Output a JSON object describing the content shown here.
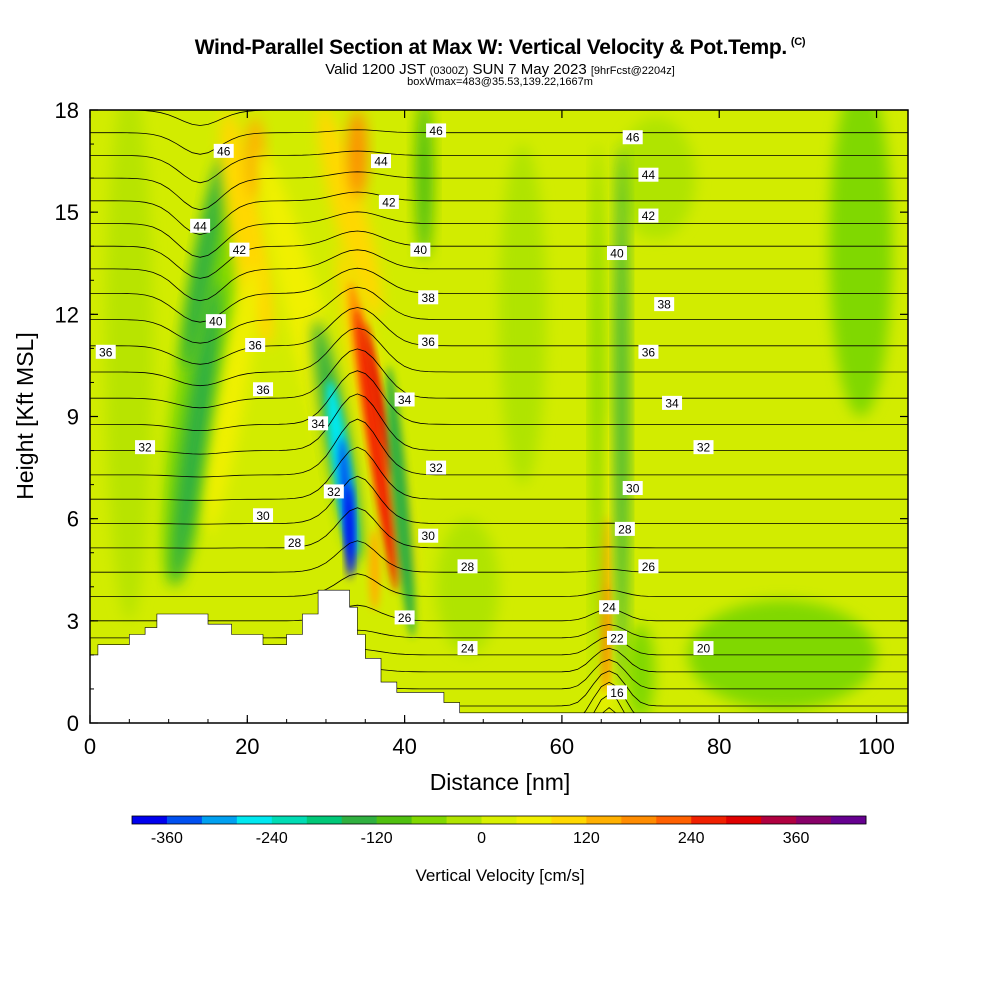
{
  "title": "Wind-Parallel Section at Max W: Vertical Velocity & Pot.Temp.",
  "title_mark": "(C)",
  "subtitle_main": "Valid 1200 JST",
  "subtitle_z": "(0300Z)",
  "subtitle_date": "SUN 7 May 2023",
  "subtitle_fcst": "[9hrFcst@2204z]",
  "subsubtitle": "boxWmax=483@35.53,139.22,1667m",
  "chart_data": {
    "type": "heatmap",
    "xlabel": "Distance [nm]",
    "ylabel": "Height [Kft MSL]",
    "xlim": [
      0,
      104
    ],
    "ylim": [
      0,
      18
    ],
    "x_ticks": [
      "0",
      "20",
      "40",
      "60",
      "80",
      "100"
    ],
    "y_ticks": [
      "0",
      "3",
      "6",
      "9",
      "12",
      "15",
      "18"
    ],
    "fill_variable": "Vertical Velocity [cm/s]",
    "colorbar": {
      "label": "Vertical Velocity [cm/s]",
      "tick_labels": [
        "-360",
        "-240",
        "-120",
        "0",
        "120",
        "240",
        "360"
      ],
      "colors": [
        "#0000ee",
        "#0050f0",
        "#00a0f0",
        "#00e8f0",
        "#00dcb4",
        "#00c878",
        "#30b040",
        "#50c010",
        "#80d800",
        "#b0e400",
        "#d8f000",
        "#f0f000",
        "#ffd800",
        "#ffb000",
        "#ff8c00",
        "#ff6000",
        "#f02000",
        "#e00000",
        "#b00040",
        "#880068",
        "#660090"
      ]
    },
    "features": [
      {
        "name": "strong updraft",
        "x": 37,
        "ymin": 2.5,
        "ymax": 13,
        "w_peak": 483
      },
      {
        "name": "strong downdraft",
        "x": 32.5,
        "ymin": 3.5,
        "ymax": 10,
        "w_peak": -360
      },
      {
        "name": "updraft",
        "x": 66,
        "ymin": 0.3,
        "ymax": 9,
        "w_peak": 180
      },
      {
        "name": "downdraft",
        "x": 14,
        "ymin": 4,
        "ymax": 16,
        "w_peak": -130
      },
      {
        "name": "updraft",
        "x": 20,
        "ymin": 9,
        "ymax": 18,
        "w_peak": 150
      }
    ],
    "theta_contours": {
      "unit": "K",
      "interval": 1,
      "labeled_values": [
        {
          "text": "46",
          "x": 17,
          "y": 16.8
        },
        {
          "text": "46",
          "x": 44,
          "y": 17.4
        },
        {
          "text": "46",
          "x": 69,
          "y": 17.2
        },
        {
          "text": "44",
          "x": 14,
          "y": 14.6
        },
        {
          "text": "44",
          "x": 37,
          "y": 16.5
        },
        {
          "text": "44",
          "x": 71,
          "y": 16.1
        },
        {
          "text": "42",
          "x": 19,
          "y": 13.9
        },
        {
          "text": "42",
          "x": 38,
          "y": 15.3
        },
        {
          "text": "42",
          "x": 71,
          "y": 14.9
        },
        {
          "text": "40",
          "x": 16,
          "y": 11.8
        },
        {
          "text": "40",
          "x": 42,
          "y": 13.9
        },
        {
          "text": "40",
          "x": 67,
          "y": 13.8
        },
        {
          "text": "38",
          "x": 43,
          "y": 12.5
        },
        {
          "text": "38",
          "x": 73,
          "y": 12.3
        },
        {
          "text": "36",
          "x": 2,
          "y": 10.9
        },
        {
          "text": "36",
          "x": 21,
          "y": 11.1
        },
        {
          "text": "36",
          "x": 22,
          "y": 9.8
        },
        {
          "text": "36",
          "x": 43,
          "y": 11.2
        },
        {
          "text": "36",
          "x": 71,
          "y": 10.9
        },
        {
          "text": "34",
          "x": 29,
          "y": 8.8
        },
        {
          "text": "34",
          "x": 40,
          "y": 9.5
        },
        {
          "text": "34",
          "x": 74,
          "y": 9.4
        },
        {
          "text": "32",
          "x": 7,
          "y": 8.1
        },
        {
          "text": "32",
          "x": 31,
          "y": 6.8
        },
        {
          "text": "32",
          "x": 44,
          "y": 7.5
        },
        {
          "text": "32",
          "x": 78,
          "y": 8.1
        },
        {
          "text": "30",
          "x": 22,
          "y": 6.1
        },
        {
          "text": "30",
          "x": 43,
          "y": 5.5
        },
        {
          "text": "30",
          "x": 69,
          "y": 6.9
        },
        {
          "text": "28",
          "x": 26,
          "y": 5.3
        },
        {
          "text": "28",
          "x": 48,
          "y": 4.6
        },
        {
          "text": "28",
          "x": 68,
          "y": 5.7
        },
        {
          "text": "26",
          "x": 40,
          "y": 3.1
        },
        {
          "text": "26",
          "x": 71,
          "y": 4.6
        },
        {
          "text": "24",
          "x": 48,
          "y": 2.2
        },
        {
          "text": "24",
          "x": 66,
          "y": 3.4
        },
        {
          "text": "22",
          "x": 67,
          "y": 2.5
        },
        {
          "text": "20",
          "x": 78,
          "y": 2.2
        },
        {
          "text": "16",
          "x": 67,
          "y": 0.9
        }
      ]
    },
    "terrain": [
      [
        0,
        2.0
      ],
      [
        1,
        2.0
      ],
      [
        1,
        2.3
      ],
      [
        5,
        2.3
      ],
      [
        5,
        2.6
      ],
      [
        7,
        2.6
      ],
      [
        7,
        2.8
      ],
      [
        8.5,
        2.8
      ],
      [
        8.5,
        3.2
      ],
      [
        15,
        3.2
      ],
      [
        15,
        2.9
      ],
      [
        18,
        2.9
      ],
      [
        18,
        2.6
      ],
      [
        22,
        2.6
      ],
      [
        22,
        2.3
      ],
      [
        25,
        2.3
      ],
      [
        25,
        2.6
      ],
      [
        27,
        2.6
      ],
      [
        27,
        3.2
      ],
      [
        29,
        3.2
      ],
      [
        29,
        3.9
      ],
      [
        33,
        3.9
      ],
      [
        33,
        3.4
      ],
      [
        34,
        3.4
      ],
      [
        34,
        2.6
      ],
      [
        35,
        2.6
      ],
      [
        35,
        1.9
      ],
      [
        37,
        1.9
      ],
      [
        37,
        1.2
      ],
      [
        39,
        1.2
      ],
      [
        39,
        0.9
      ],
      [
        45,
        0.9
      ],
      [
        45,
        0.6
      ],
      [
        47,
        0.6
      ],
      [
        47,
        0.3
      ],
      [
        104,
        0.3
      ]
    ]
  }
}
